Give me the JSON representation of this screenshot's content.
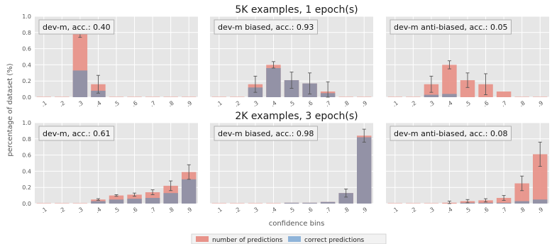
{
  "figure": {
    "row_titles": [
      "5K examples, 1 epoch(s)",
      "2K examples, 3 epoch(s)"
    ],
    "ylabel": "percentage of dataset (%)",
    "xlabel": "confidence bins",
    "legend": {
      "items": [
        {
          "label": "number of predictions",
          "color": "#e8938a"
        },
        {
          "label": "correct predictions",
          "color": "#8fb4d9"
        }
      ]
    },
    "colors": {
      "total": "#e8938a",
      "correct": "#8fb4d9",
      "overlap": "#8e91a8",
      "panel_bg": "#e6e6e6",
      "grid": "#ffffff"
    }
  },
  "chart_data": [
    {
      "type": "bar",
      "title": "dev-m, acc.: 0.40",
      "categories": [
        ".1",
        ".2",
        ".3",
        ".4",
        ".5",
        ".6",
        ".7",
        ".8",
        ".9"
      ],
      "ylim": [
        0,
        1.0
      ],
      "yticks": [
        "0.0",
        "0.2",
        "0.4",
        "0.6",
        "0.8",
        "1.0"
      ],
      "series": [
        {
          "name": "number of predictions",
          "values": [
            0,
            0,
            0.84,
            0.16,
            0,
            0,
            0,
            0,
            0
          ]
        },
        {
          "name": "correct predictions",
          "values": [
            0,
            0,
            0.33,
            0.08,
            0,
            0,
            0,
            0,
            0
          ]
        }
      ],
      "error_half": [
        0,
        0,
        0.1,
        0.11,
        0,
        0,
        0,
        0,
        0
      ]
    },
    {
      "type": "bar",
      "title": "dev-m biased, acc.: 0.93",
      "categories": [
        ".1",
        ".2",
        ".3",
        ".4",
        ".5",
        ".6",
        ".7",
        ".8",
        ".9"
      ],
      "ylim": [
        0,
        1.0
      ],
      "yticks": [
        "0.0",
        "0.2",
        "0.4",
        "0.6",
        "0.8",
        "1.0"
      ],
      "series": [
        {
          "name": "number of predictions",
          "values": [
            0,
            0,
            0.16,
            0.4,
            0.21,
            0.17,
            0.07,
            0,
            0
          ]
        },
        {
          "name": "correct predictions",
          "values": [
            0,
            0,
            0.12,
            0.36,
            0.21,
            0.17,
            0.05,
            0,
            0
          ]
        }
      ],
      "error_half": [
        0,
        0,
        0.1,
        0.04,
        0.1,
        0.13,
        0.12,
        0,
        0
      ]
    },
    {
      "type": "bar",
      "title": "dev-m anti-biased, acc.: 0.05",
      "categories": [
        ".1",
        ".2",
        ".3",
        ".4",
        ".5",
        ".6",
        ".7",
        ".8",
        ".9"
      ],
      "ylim": [
        0,
        1.0
      ],
      "yticks": [
        "0.0",
        "0.2",
        "0.4",
        "0.6",
        "0.8",
        "1.0"
      ],
      "series": [
        {
          "name": "number of predictions",
          "values": [
            0,
            0,
            0.16,
            0.4,
            0.21,
            0.16,
            0.07,
            0,
            0
          ]
        },
        {
          "name": "correct predictions",
          "values": [
            0,
            0,
            0.03,
            0.04,
            0,
            0,
            0,
            0,
            0
          ]
        }
      ],
      "error_half": [
        0,
        0,
        0.1,
        0.05,
        0.09,
        0.13,
        0,
        0,
        0
      ]
    },
    {
      "type": "bar",
      "title": "dev-m, acc.: 0.61",
      "categories": [
        ".1",
        ".2",
        ".3",
        ".4",
        ".5",
        ".6",
        ".7",
        ".8",
        ".9"
      ],
      "ylim": [
        0,
        1.0
      ],
      "yticks": [
        "0.0",
        "0.2",
        "0.4",
        "0.6",
        "0.8",
        "1.0"
      ],
      "series": [
        {
          "name": "number of predictions",
          "values": [
            0,
            0,
            0,
            0.05,
            0.1,
            0.11,
            0.14,
            0.22,
            0.39
          ]
        },
        {
          "name": "correct predictions",
          "values": [
            0,
            0,
            0,
            0.03,
            0.05,
            0.06,
            0.07,
            0.13,
            0.3
          ]
        }
      ],
      "error_half": [
        0,
        0,
        0,
        0.01,
        0.01,
        0.02,
        0.03,
        0.06,
        0.09
      ]
    },
    {
      "type": "bar",
      "title": "dev-m biased, acc.: 0.98",
      "categories": [
        ".1",
        ".2",
        ".3",
        ".4",
        ".5",
        ".6",
        ".7",
        ".8",
        ".9"
      ],
      "ylim": [
        0,
        1.0
      ],
      "yticks": [
        "0.0",
        "0.2",
        "0.4",
        "0.6",
        "0.8",
        "1.0"
      ],
      "series": [
        {
          "name": "number of predictions",
          "values": [
            0,
            0,
            0,
            0,
            0.01,
            0.01,
            0.02,
            0.13,
            0.84
          ]
        },
        {
          "name": "correct predictions",
          "values": [
            0,
            0,
            0,
            0,
            0.01,
            0.01,
            0.02,
            0.13,
            0.82
          ]
        }
      ],
      "error_half": [
        0,
        0,
        0,
        0,
        0,
        0,
        0,
        0.05,
        0.08
      ]
    },
    {
      "type": "bar",
      "title": "dev-m anti-biased, acc.: 0.08",
      "categories": [
        ".1",
        ".2",
        ".3",
        ".4",
        ".5",
        ".6",
        ".7",
        ".8",
        ".9"
      ],
      "ylim": [
        0,
        1.0
      ],
      "yticks": [
        "0.0",
        "0.2",
        "0.4",
        "0.6",
        "0.8",
        "1.0"
      ],
      "series": [
        {
          "name": "number of predictions",
          "values": [
            0,
            0,
            0,
            0.01,
            0.03,
            0.04,
            0.07,
            0.25,
            0.61
          ]
        },
        {
          "name": "correct predictions",
          "values": [
            0,
            0,
            0,
            0,
            0.01,
            0.01,
            0.01,
            0.03,
            0.05
          ]
        }
      ],
      "error_half": [
        0,
        0,
        0,
        0.02,
        0.02,
        0.02,
        0.03,
        0.09,
        0.15
      ]
    }
  ]
}
